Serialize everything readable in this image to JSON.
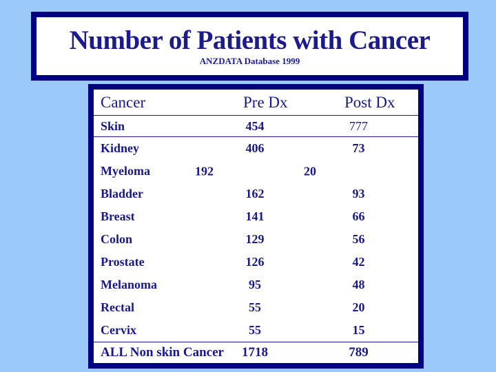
{
  "title": {
    "text": "Number of Patients with Cancer",
    "subtitle": "ANZDATA Database 1999"
  },
  "table": {
    "headers": {
      "cancer": "Cancer",
      "pre": "Pre Dx",
      "post": "Post Dx"
    },
    "rows": [
      {
        "label": "Skin",
        "pre": "454",
        "post": "777"
      },
      {
        "label": "Kidney",
        "pre": "406",
        "post": "73"
      },
      {
        "label": "Myeloma",
        "pre": "192",
        "post": "20"
      },
      {
        "label": "Bladder",
        "pre": "162",
        "post": "93"
      },
      {
        "label": "Breast",
        "pre": "141",
        "post": "66"
      },
      {
        "label": "Colon",
        "pre": "129",
        "post": "56"
      },
      {
        "label": "Prostate",
        "pre": "126",
        "post": "42"
      },
      {
        "label": "Melanoma",
        "pre": "95",
        "post": "48"
      },
      {
        "label": "Rectal",
        "pre": "55",
        "post": "20"
      },
      {
        "label": "Cervix",
        "pre": "55",
        "post": "15"
      }
    ],
    "total_row": {
      "label": "ALL Non skin Cancer",
      "pre": "1718",
      "post": "789"
    }
  },
  "chart_data": {
    "type": "table",
    "title": "Number of Patients with Cancer",
    "subtitle": "ANZDATA Database 1999",
    "columns": [
      "Cancer",
      "Pre Dx",
      "Post Dx"
    ],
    "rows": [
      [
        "Skin",
        454,
        777
      ],
      [
        "Kidney",
        406,
        73
      ],
      [
        "Myeloma",
        192,
        20
      ],
      [
        "Bladder",
        162,
        93
      ],
      [
        "Breast",
        141,
        66
      ],
      [
        "Colon",
        129,
        56
      ],
      [
        "Prostate",
        126,
        42
      ],
      [
        "Melanoma",
        95,
        48
      ],
      [
        "Rectal",
        55,
        20
      ],
      [
        "Cervix",
        55,
        15
      ],
      [
        "ALL Non skin Cancer",
        1718,
        789
      ]
    ]
  },
  "colors": {
    "background": "#9CCAF8",
    "border_navy": "#000082",
    "text_navy": "#18188A",
    "panel": "#FFFFFF"
  }
}
